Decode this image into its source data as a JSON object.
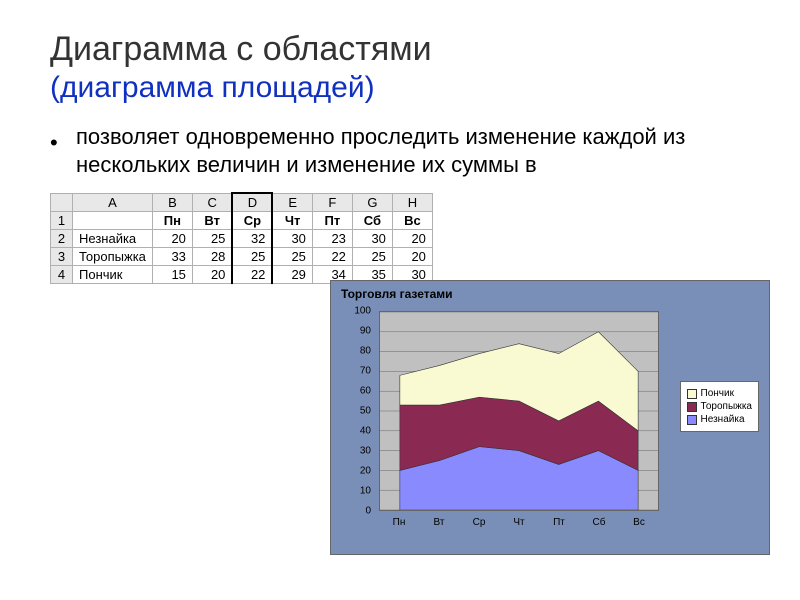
{
  "title": "Диаграмма с областями",
  "subtitle": "(диаграмма площадей)",
  "body": "позволяет одновременно проследить изменение каждой из нескольких величин и изменение их суммы в",
  "table": {
    "col_headers": [
      "A",
      "B",
      "C",
      "D",
      "E",
      "F",
      "G",
      "H"
    ],
    "selected_col_index": 3,
    "rows": [
      {
        "num": "1",
        "cells": [
          "",
          "Пн",
          "Вт",
          "Ср",
          "Чт",
          "Пт",
          "Сб",
          "Вс"
        ],
        "bold": true
      },
      {
        "num": "2",
        "cells": [
          "Незнайка",
          "20",
          "25",
          "32",
          "30",
          "23",
          "30",
          "20"
        ]
      },
      {
        "num": "3",
        "cells": [
          "Торопыжка",
          "33",
          "28",
          "25",
          "25",
          "22",
          "25",
          "20"
        ]
      },
      {
        "num": "4",
        "cells": [
          "Пончик",
          "15",
          "20",
          "22",
          "29",
          "34",
          "35",
          "30"
        ]
      }
    ]
  },
  "chart": {
    "type": "stacked-area",
    "title": "Торговля газетами",
    "background": "#7a8fb8",
    "plot_bg": "#c0c0c0",
    "grid_color": "#666666",
    "categories": [
      "Пн",
      "Вт",
      "Ср",
      "Чт",
      "Пт",
      "Сб",
      "Вс"
    ],
    "ylim": [
      0,
      100
    ],
    "ytick_step": 10,
    "series": [
      {
        "name": "Незнайка",
        "values": [
          20,
          25,
          32,
          30,
          23,
          30,
          20
        ],
        "color": "#8a8aff"
      },
      {
        "name": "Торопыжка",
        "values": [
          33,
          28,
          25,
          25,
          22,
          25,
          20
        ],
        "color": "#8a2a52"
      },
      {
        "name": "Пончик",
        "values": [
          15,
          20,
          22,
          29,
          34,
          35,
          30
        ],
        "color": "#fafad2"
      }
    ],
    "legend_order": [
      "Пончик",
      "Торопыжка",
      "Незнайка"
    ],
    "legend": {
      "l0": "Пончик",
      "l1": "Торопыжка",
      "l2": "Незнайка"
    }
  }
}
